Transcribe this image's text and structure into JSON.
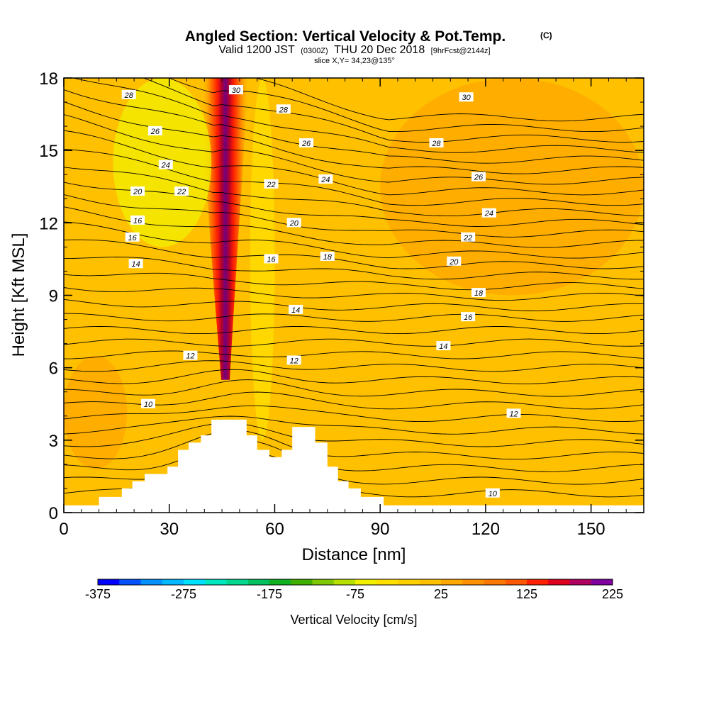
{
  "header": {
    "title": "Angled Section: Vertical Velocity & Pot.Temp.",
    "copyright": "(C)",
    "valid_prefix": "Valid 1200 JST",
    "utc": "(0300Z)",
    "valid_date": "THU 20 Dec 2018",
    "forecast": "[9hrFcst@2144z]",
    "slice": "slice X,Y= 34,23@135°"
  },
  "chart_data": {
    "type": "heatmap",
    "xlabel": "Distance [nm]",
    "ylabel": "Height [Kft MSL]",
    "xlim": [
      0,
      165
    ],
    "ylim": [
      0,
      18
    ],
    "xticks": [
      0,
      30,
      60,
      90,
      120,
      150
    ],
    "yticks": [
      0,
      3,
      6,
      9,
      12,
      15,
      18
    ],
    "background_color": "#FFC000",
    "field": "Vertical Velocity [cm/s]",
    "velocity_features": [
      {
        "kind": "updraft-core",
        "x_center": 46,
        "x_width": 8,
        "y_bottom": 5.5,
        "y_top": 18,
        "max_value": 225
      },
      {
        "kind": "weak-updraft",
        "x_range": [
          0,
          18
        ],
        "y_range": [
          1.8,
          6.5
        ],
        "value": 40
      },
      {
        "kind": "weak-downdraft",
        "x_range": [
          14,
          42
        ],
        "y_range": [
          11,
          18
        ],
        "value": -75
      },
      {
        "kind": "weak-downdraft",
        "x_range": [
          53,
          60
        ],
        "y_range": [
          3,
          18
        ],
        "value": -50
      },
      {
        "kind": "weak-updraft",
        "x_range": [
          90,
          165
        ],
        "y_range": [
          9,
          18
        ],
        "value": 40
      }
    ],
    "terrain": [
      {
        "x": 0,
        "y": 0.3
      },
      {
        "x": 10,
        "y": 0.3
      },
      {
        "x": 10,
        "y": 0.65
      },
      {
        "x": 16.5,
        "y": 0.65
      },
      {
        "x": 16.5,
        "y": 1.0
      },
      {
        "x": 19.5,
        "y": 1.0
      },
      {
        "x": 19.5,
        "y": 1.3
      },
      {
        "x": 23,
        "y": 1.3
      },
      {
        "x": 23,
        "y": 1.6
      },
      {
        "x": 29.5,
        "y": 1.6
      },
      {
        "x": 29.5,
        "y": 1.9
      },
      {
        "x": 32.5,
        "y": 1.9
      },
      {
        "x": 32.5,
        "y": 2.6
      },
      {
        "x": 35.5,
        "y": 2.6
      },
      {
        "x": 35.5,
        "y": 2.9
      },
      {
        "x": 39,
        "y": 2.9
      },
      {
        "x": 39,
        "y": 3.2
      },
      {
        "x": 42,
        "y": 3.2
      },
      {
        "x": 42,
        "y": 3.85
      },
      {
        "x": 52,
        "y": 3.85
      },
      {
        "x": 52,
        "y": 3.2
      },
      {
        "x": 55,
        "y": 3.2
      },
      {
        "x": 55,
        "y": 2.6
      },
      {
        "x": 58.5,
        "y": 2.6
      },
      {
        "x": 58.5,
        "y": 2.3
      },
      {
        "x": 62,
        "y": 2.3
      },
      {
        "x": 62,
        "y": 2.6
      },
      {
        "x": 65,
        "y": 2.6
      },
      {
        "x": 65,
        "y": 3.55
      },
      {
        "x": 71.5,
        "y": 3.55
      },
      {
        "x": 71.5,
        "y": 2.9
      },
      {
        "x": 75,
        "y": 2.9
      },
      {
        "x": 75,
        "y": 1.9
      },
      {
        "x": 78,
        "y": 1.9
      },
      {
        "x": 78,
        "y": 1.3
      },
      {
        "x": 81,
        "y": 1.3
      },
      {
        "x": 81,
        "y": 1.0
      },
      {
        "x": 84.5,
        "y": 1.0
      },
      {
        "x": 84.5,
        "y": 0.65
      },
      {
        "x": 91,
        "y": 0.65
      },
      {
        "x": 91,
        "y": 0.3
      },
      {
        "x": 165,
        "y": 0.3
      }
    ],
    "contour_labels": [
      {
        "text": "28",
        "x": 18.5,
        "y": 17.3
      },
      {
        "text": "30",
        "x": 49,
        "y": 17.5
      },
      {
        "text": "28",
        "x": 62.5,
        "y": 16.7
      },
      {
        "text": "30",
        "x": 114.5,
        "y": 17.2
      },
      {
        "text": "26",
        "x": 26,
        "y": 15.8
      },
      {
        "text": "28",
        "x": 106,
        "y": 15.3
      },
      {
        "text": "26",
        "x": 69,
        "y": 15.3
      },
      {
        "text": "24",
        "x": 29,
        "y": 14.4
      },
      {
        "text": "26",
        "x": 118,
        "y": 13.9
      },
      {
        "text": "24",
        "x": 74.5,
        "y": 13.8
      },
      {
        "text": "22",
        "x": 59,
        "y": 13.6
      },
      {
        "text": "20",
        "x": 21,
        "y": 13.3
      },
      {
        "text": "22",
        "x": 33.5,
        "y": 13.3
      },
      {
        "text": "24",
        "x": 121,
        "y": 12.4
      },
      {
        "text": "16",
        "x": 21,
        "y": 12.1
      },
      {
        "text": "20",
        "x": 65.5,
        "y": 12.0
      },
      {
        "text": "16",
        "x": 19.5,
        "y": 11.4
      },
      {
        "text": "22",
        "x": 115,
        "y": 11.4
      },
      {
        "text": "18",
        "x": 75,
        "y": 10.6
      },
      {
        "text": "16",
        "x": 59,
        "y": 10.5
      },
      {
        "text": "14",
        "x": 20.5,
        "y": 10.3
      },
      {
        "text": "20",
        "x": 111,
        "y": 10.4
      },
      {
        "text": "18",
        "x": 118,
        "y": 9.1
      },
      {
        "text": "14",
        "x": 66,
        "y": 8.4
      },
      {
        "text": "16",
        "x": 115,
        "y": 8.1
      },
      {
        "text": "14",
        "x": 108,
        "y": 6.9
      },
      {
        "text": "12",
        "x": 36,
        "y": 6.5
      },
      {
        "text": "12",
        "x": 65.5,
        "y": 6.3
      },
      {
        "text": "10",
        "x": 24,
        "y": 4.5
      },
      {
        "text": "12",
        "x": 128,
        "y": 4.1
      },
      {
        "text": "10",
        "x": 122,
        "y": 0.8
      }
    ],
    "colorbar": {
      "title": "Vertical Velocity [cm/s]",
      "min": -375,
      "max": 225,
      "step": 25,
      "tick_labels": [
        "-375",
        "-275",
        "-175",
        "-75",
        "25",
        "125",
        "225"
      ],
      "colors": [
        "#0000FF",
        "#0050FF",
        "#0090FF",
        "#00B8FF",
        "#00E0FF",
        "#00E8C0",
        "#00D890",
        "#00C060",
        "#10B020",
        "#40B000",
        "#80C800",
        "#B8E000",
        "#F0F000",
        "#FFE000",
        "#FFD000",
        "#FFC000",
        "#FFA800",
        "#FF9000",
        "#FF7800",
        "#FF5800",
        "#FF2000",
        "#E00020",
        "#B00060",
        "#8000A0"
      ]
    }
  }
}
